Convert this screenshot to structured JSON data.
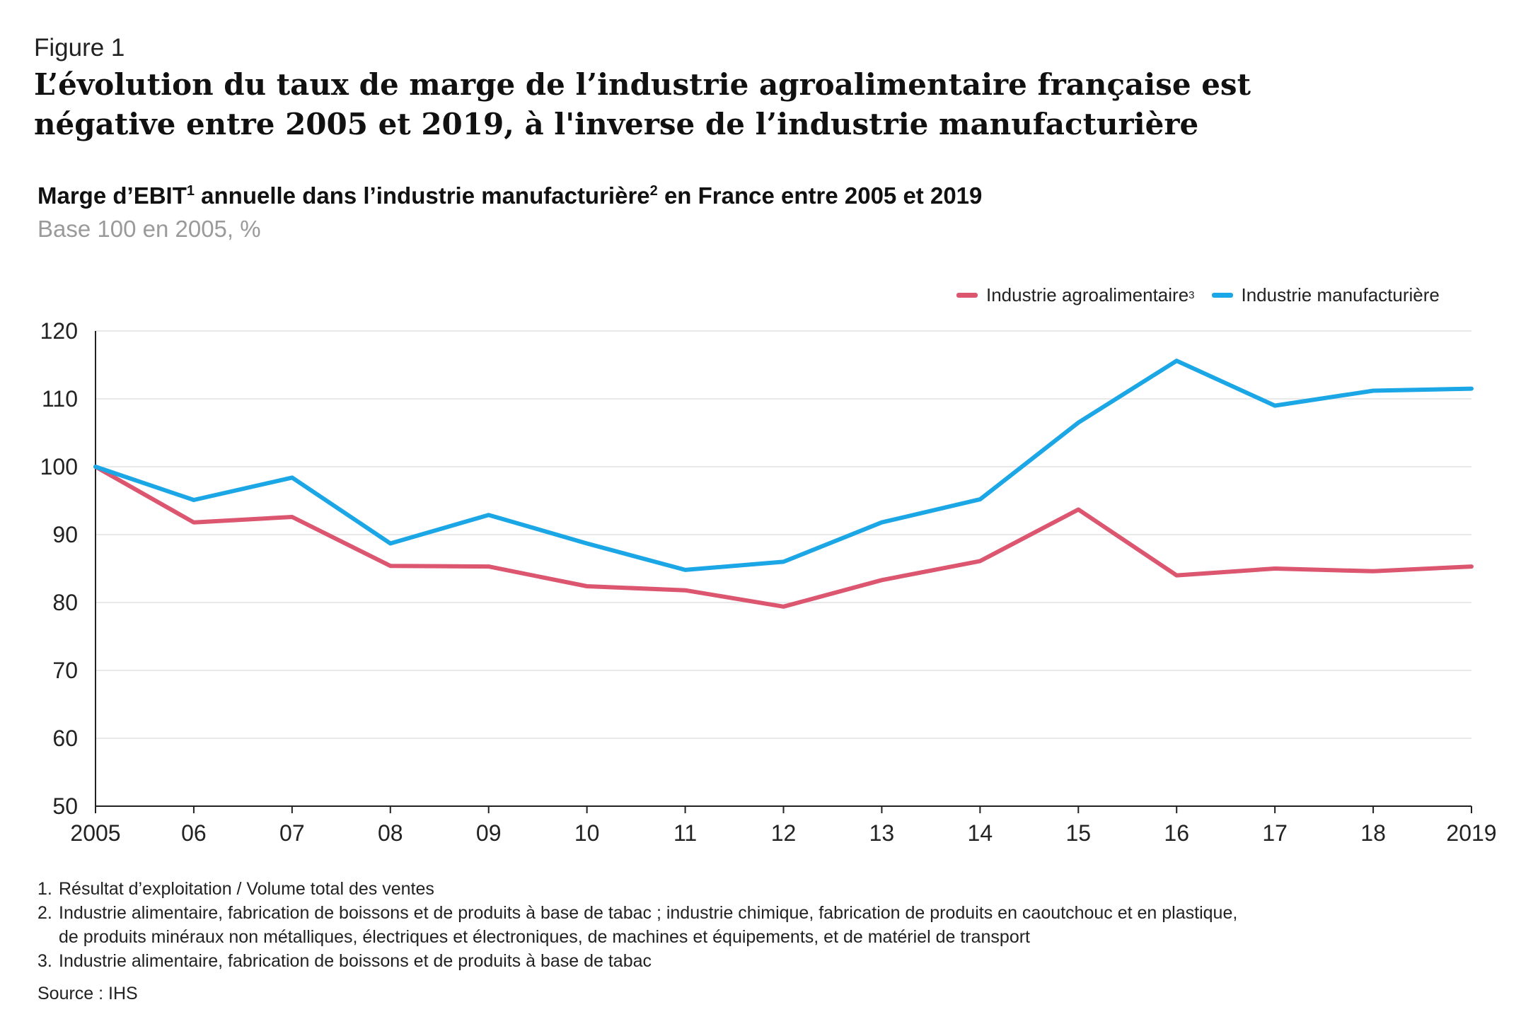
{
  "figure_label": "Figure 1",
  "headline": "L’évolution du taux de marge de l’industrie agroalimentaire française est négative entre 2005 et 2019, à l'inverse de l’industrie manufacturière",
  "chart_title": {
    "part1": "Marge d’EBIT",
    "sup1": "1",
    "part2": " annuelle dans l’industrie manufacturière",
    "sup2": "2",
    "part3": " en France entre 2005 et 2019"
  },
  "subtitle": "Base 100 en 2005, %",
  "legend": {
    "agro_label": "Industrie agroalimentaire",
    "agro_sup": "3",
    "manuf_label": "Industrie manufacturière"
  },
  "colors": {
    "agro": "#dc5670",
    "manuf": "#1ba6e6",
    "grid": "#e2e2e2",
    "axis": "#222222"
  },
  "chart_data": {
    "type": "line",
    "x": [
      2005,
      2006,
      2007,
      2008,
      2009,
      2010,
      2011,
      2012,
      2013,
      2014,
      2015,
      2016,
      2017,
      2018,
      2019
    ],
    "x_tick_labels": [
      "2005",
      "06",
      "07",
      "08",
      "09",
      "10",
      "11",
      "12",
      "13",
      "14",
      "15",
      "16",
      "17",
      "18",
      "2019"
    ],
    "y_ticks": [
      50,
      60,
      70,
      80,
      90,
      100,
      110,
      120
    ],
    "ylim": [
      50,
      120
    ],
    "grid": "horizontal",
    "legend_position": "top-right",
    "series": [
      {
        "name": "Industrie agroalimentaire",
        "color": "#dc5670",
        "values": [
          100,
          91.8,
          92.6,
          85.4,
          85.3,
          82.4,
          81.8,
          79.4,
          83.3,
          86.1,
          93.7,
          84.0,
          85.0,
          84.6,
          85.3
        ]
      },
      {
        "name": "Industrie manufacturière",
        "color": "#1ba6e6",
        "values": [
          100,
          95.1,
          98.4,
          88.7,
          92.9,
          88.7,
          84.8,
          86.0,
          91.8,
          95.2,
          106.5,
          115.6,
          109.0,
          111.2,
          111.5
        ]
      }
    ]
  },
  "footnotes": [
    {
      "num": "1.",
      "lines": [
        "Résultat d’exploitation / Volume total des ventes"
      ]
    },
    {
      "num": "2.",
      "lines": [
        "Industrie alimentaire, fabrication de boissons et de produits à base de tabac ; industrie chimique, fabrication de produits en caoutchouc et en plastique,",
        "de produits minéraux non métalliques, électriques et électroniques, de machines et équipements, et de matériel de transport"
      ]
    },
    {
      "num": "3.",
      "lines": [
        "Industrie alimentaire, fabrication de boissons et de produits à base de tabac"
      ]
    }
  ],
  "source": "Source : IHS"
}
